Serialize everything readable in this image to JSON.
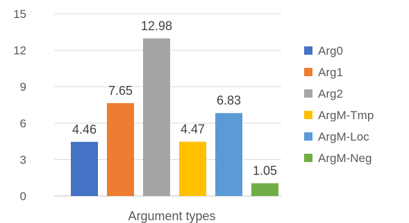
{
  "chart_data": {
    "type": "bar",
    "title": "",
    "xlabel": "Argument types",
    "ylabel": "",
    "ylim": [
      0,
      15
    ],
    "yticks": [
      "0",
      "3",
      "6",
      "9",
      "12",
      "15"
    ],
    "grid": true,
    "legend_position": "right",
    "series": [
      {
        "name": "Arg0",
        "value": 4.46,
        "label": "4.46",
        "color": "#4472C4"
      },
      {
        "name": "Arg1",
        "value": 7.65,
        "label": "7.65",
        "color": "#ED7D31"
      },
      {
        "name": "Arg2",
        "value": 12.98,
        "label": "12.98",
        "color": "#A5A5A5"
      },
      {
        "name": "ArgM-Tmp",
        "value": 4.47,
        "label": "4.47",
        "color": "#FFC000"
      },
      {
        "name": "ArgM-Loc",
        "value": 6.83,
        "label": "6.83",
        "color": "#5B9BD5"
      },
      {
        "name": "ArgM-Neg",
        "value": 1.05,
        "label": "1.05",
        "color": "#70AD47"
      }
    ]
  }
}
